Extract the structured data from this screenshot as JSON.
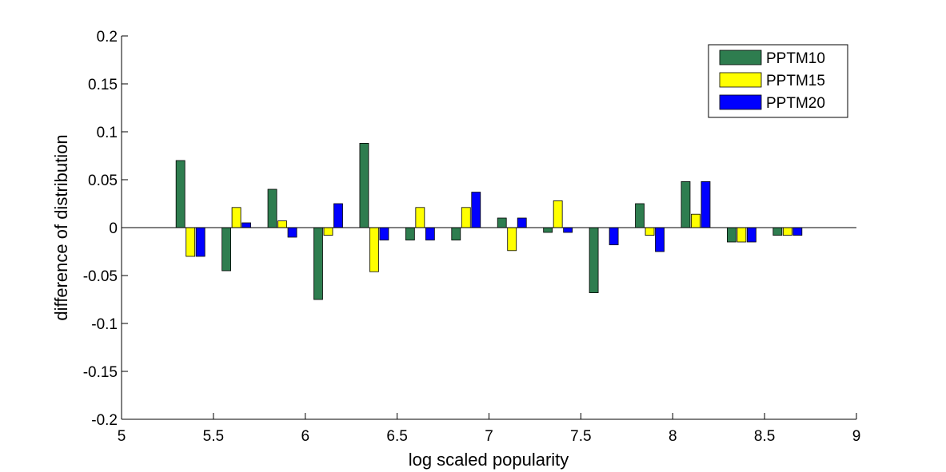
{
  "chart_data": {
    "type": "bar",
    "xlabel": "log scaled popularity",
    "ylabel": "difference of distribution",
    "xlim": [
      5,
      9
    ],
    "ylim": [
      -0.2,
      0.2
    ],
    "x_ticks": [
      5,
      5.5,
      6,
      6.5,
      7,
      7.5,
      8,
      8.5,
      9
    ],
    "x_tick_labels": [
      "5",
      "5.5",
      "6",
      "6.5",
      "7",
      "7.5",
      "8",
      "8.5",
      "9"
    ],
    "y_ticks": [
      -0.2,
      -0.15,
      -0.1,
      -0.05,
      0,
      0.05,
      0.1,
      0.15,
      0.2
    ],
    "y_tick_labels": [
      "-0.2",
      "-0.15",
      "-0.1",
      "-0.05",
      "0",
      "0.05",
      "0.1",
      "0.15",
      "0.2"
    ],
    "grid": false,
    "legend_position": "top-right",
    "x": [
      5.375,
      5.625,
      5.875,
      6.125,
      6.375,
      6.625,
      6.875,
      7.125,
      7.375,
      7.625,
      7.875,
      8.125,
      8.375,
      8.625
    ],
    "series": [
      {
        "name": "PPTM10",
        "color": "#2e7d4f",
        "values": [
          0.07,
          -0.045,
          0.04,
          -0.075,
          0.088,
          -0.013,
          -0.013,
          0.01,
          -0.005,
          -0.068,
          0.025,
          0.048,
          -0.015,
          -0.008
        ]
      },
      {
        "name": "PPTM15",
        "color": "#ffff00",
        "values": [
          -0.03,
          0.021,
          0.007,
          -0.008,
          -0.046,
          0.021,
          0.021,
          -0.024,
          0.028,
          0.0,
          -0.008,
          0.014,
          -0.015,
          -0.008
        ]
      },
      {
        "name": "PPTM20",
        "color": "#0000ff",
        "values": [
          -0.03,
          0.005,
          -0.01,
          0.025,
          -0.013,
          -0.013,
          0.037,
          0.01,
          -0.005,
          -0.018,
          -0.025,
          0.048,
          -0.015,
          -0.008
        ]
      }
    ]
  }
}
